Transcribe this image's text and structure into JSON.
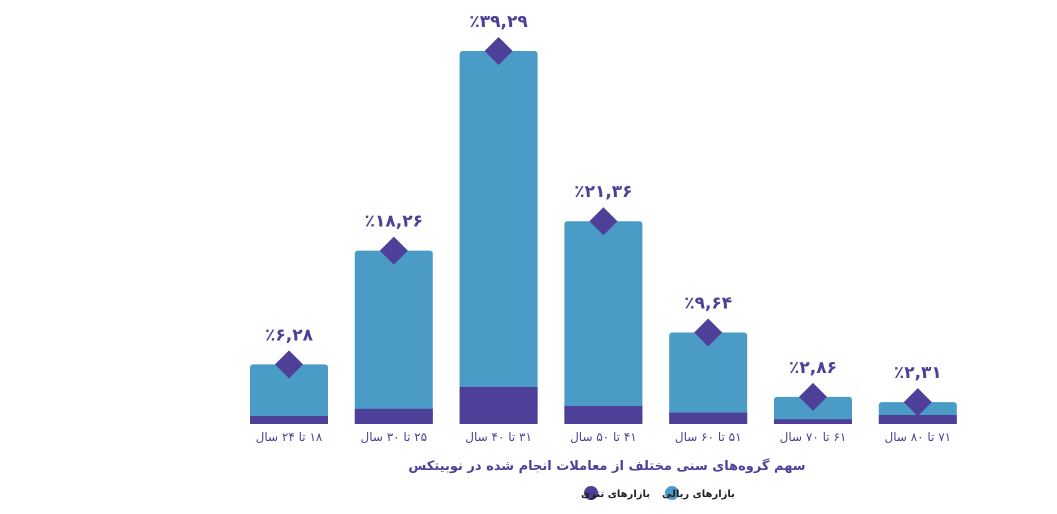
{
  "chart_data": {
    "type": "bar",
    "stacked": true,
    "title": "سهم گروه‌های سنی مختلف از معاملات انجام شده در نوبیتکس",
    "categories": [
      "۱۸ تا ۲۴ سال",
      "۲۵ تا ۳۰ سال",
      "۳۱ تا ۴۰ سال",
      "۴۱ تا ۵۰ سال",
      "۵۱ تا ۶۰ سال",
      "۶۱ تا ۷۰ سال",
      "۷۱ تا ۸۰ سال"
    ],
    "totals": [
      6.28,
      18.26,
      39.29,
      21.36,
      9.64,
      2.86,
      2.31
    ],
    "value_labels": [
      "٪۶,۲۸",
      "٪۱۸,۲۶",
      "٪۳۹,۲۹",
      "٪۲۱,۳۶",
      "٪۹,۶۴",
      "٪۲,۸۶",
      "٪۲,۳۱"
    ],
    "series": [
      {
        "name": "بازارهای ریالی",
        "color": "#4a9bc6",
        "values": [
          5.44,
          16.66,
          35.39,
          19.46,
          8.44,
          2.36,
          1.36
        ]
      },
      {
        "name": "بازارهای تتری",
        "color": "#4e3f98",
        "values": [
          0.84,
          1.6,
          3.9,
          1.9,
          1.2,
          0.5,
          0.95
        ]
      }
    ],
    "ylim": [
      0,
      40
    ],
    "grid": false,
    "legend": "bottom-center",
    "xlabel": "",
    "ylabel": ""
  }
}
